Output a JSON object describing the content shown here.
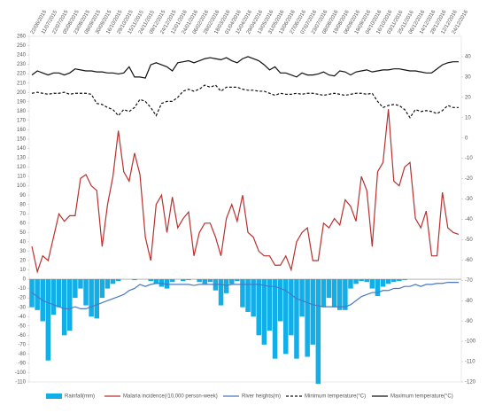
{
  "chart_data": {
    "type": "combo",
    "categories": [
      "22/06/2015",
      null,
      "11/07/2015",
      null,
      "22/07/2015",
      null,
      "05/08/2015",
      null,
      "23/08/2015",
      null,
      "08/09/2015",
      null,
      "30/09/2015",
      null,
      "16/10/2015",
      null,
      "29/10/2015",
      null,
      "15/11/2015",
      null,
      "24/11/2015",
      null,
      "09/12/2015",
      null,
      "24/12/2015",
      null,
      "12/01/2016",
      null,
      "24/01/2016",
      null,
      "06/02/2016",
      null,
      "28/02/2016",
      null,
      "18/03/2016",
      null,
      "01/04/2016",
      null,
      "15/04/2016",
      null,
      "29/04/2016",
      null,
      "13/05/2016",
      null,
      "31/05/2016",
      null,
      "13/06/2016",
      null,
      "27/06/2016",
      null,
      "07/07/2016",
      null,
      "23/07/2016",
      null,
      "08/08/2016",
      null,
      "19/08/2016",
      null,
      "06/09/2016",
      null,
      "19/09/2016",
      null,
      "04/10/2016",
      null,
      "16/10/2016",
      null,
      "03/11/2016",
      null,
      "25/11/2016",
      null,
      "06/12/2016",
      null,
      "14/12/2016",
      null,
      "28/12/2016",
      null,
      "12/12/2016",
      null,
      "24/12/2016",
      null
    ],
    "series": [
      {
        "name": "Rainfall(mm)",
        "type": "bar",
        "color": "#12aee8",
        "axis": "y",
        "values": [
          -30,
          -33,
          -45,
          -87,
          -38,
          -30,
          -60,
          -55,
          -20,
          -10,
          -28,
          -40,
          -42,
          -20,
          -10,
          -5,
          -2,
          0,
          0,
          -1,
          0,
          0,
          -2,
          -5,
          -8,
          -10,
          -3,
          0,
          -2,
          -1,
          0,
          -3,
          -5,
          -3,
          -12,
          -28,
          -15,
          -5,
          -2,
          -30,
          -35,
          -40,
          -60,
          -70,
          -55,
          -85,
          -45,
          -80,
          -60,
          -85,
          -40,
          -83,
          -70,
          -112,
          -30,
          -20,
          -30,
          -33,
          -33,
          -10,
          -5,
          -2,
          -3,
          -10,
          -18,
          -8,
          -5,
          -3,
          -2,
          -1,
          0,
          0,
          0,
          0,
          0,
          0,
          0,
          0,
          0,
          0
        ]
      },
      {
        "name": "Malaria incidence(/10,000 person-week)",
        "type": "line",
        "line_style": "solid",
        "color": "#b8312f",
        "axis": "y",
        "values": [
          35,
          8,
          25,
          20,
          45,
          70,
          62,
          68,
          68,
          108,
          112,
          100,
          95,
          35,
          80,
          110,
          159,
          115,
          105,
          135,
          112,
          45,
          20,
          80,
          90,
          50,
          88,
          55,
          65,
          72,
          25,
          50,
          60,
          60,
          45,
          25,
          65,
          80,
          62,
          90,
          50,
          45,
          30,
          25,
          25,
          15,
          15,
          25,
          10,
          40,
          50,
          55,
          20,
          20,
          60,
          55,
          65,
          58,
          85,
          78,
          62,
          110,
          95,
          35,
          115,
          125,
          182,
          105,
          100,
          120,
          125,
          65,
          55,
          73,
          25,
          25,
          93,
          55,
          50,
          48
        ]
      },
      {
        "name": "River heights(m)",
        "type": "line",
        "line_style": "solid",
        "color": "#4a78c2",
        "axis": "y2",
        "values": [
          -76,
          -78,
          -80,
          -81,
          -82,
          -83,
          -84,
          -84,
          -83,
          -84,
          -84,
          -83,
          -82,
          -81,
          -80,
          -79,
          -78,
          -77,
          -75,
          -74,
          -72,
          -73,
          -72,
          -71.5,
          -71.5,
          -72,
          -72,
          -72,
          -72,
          -72,
          -72.5,
          -72,
          -72,
          -72,
          -72,
          -72,
          -72.5,
          -72,
          -72,
          -72,
          -72,
          -72,
          -72,
          -72.5,
          -73,
          -73,
          -74,
          -75,
          -77,
          -79,
          -80,
          -81,
          -82,
          -82.5,
          -83,
          -83,
          -83,
          -83,
          -83,
          -82,
          -80,
          -78,
          -77,
          -76,
          -76,
          -75,
          -75,
          -74,
          -74,
          -73,
          -73,
          -72,
          -73,
          -72,
          -72,
          -71.5,
          -71.5,
          -71,
          -71,
          -71
        ]
      },
      {
        "name": "Minimum temperature(°C)",
        "type": "line",
        "line_style": "dashed",
        "color": "#111111",
        "axis": "y2",
        "values": [
          22,
          22.5,
          22,
          21.5,
          22,
          22,
          22.5,
          21.5,
          22,
          22,
          22,
          21.5,
          17,
          16.5,
          15,
          14,
          11,
          14,
          13,
          15,
          19,
          18,
          15,
          11,
          17,
          18,
          18,
          20,
          23,
          24,
          23,
          24,
          26,
          25,
          26,
          23,
          25,
          25,
          25,
          24,
          23.5,
          23.5,
          23,
          23,
          22,
          21,
          22,
          21.5,
          21.5,
          22,
          21.5,
          22,
          22,
          21.5,
          21,
          21.5,
          22,
          21.5,
          21,
          21.5,
          22,
          22,
          21.5,
          22,
          18,
          15,
          16,
          16.5,
          16,
          14,
          10,
          14,
          13,
          13.5,
          13,
          12,
          13.5,
          16,
          15,
          15
        ]
      },
      {
        "name": "Maximum temperature(°C)",
        "type": "line",
        "line_style": "solid",
        "color": "#111111",
        "axis": "y2",
        "values": [
          31,
          33,
          32,
          31,
          32,
          32,
          31,
          32,
          34,
          33.5,
          33,
          33,
          32.5,
          32.5,
          32,
          32,
          31.5,
          32,
          35,
          30,
          30,
          29.5,
          36,
          37,
          36,
          35,
          33,
          37,
          37.5,
          38,
          37,
          38,
          39,
          39.5,
          39,
          38.5,
          39.5,
          38,
          37,
          39,
          40,
          39,
          38,
          36,
          33.5,
          35,
          32,
          32,
          31,
          30,
          32,
          31,
          31,
          31.5,
          32.5,
          31,
          30.5,
          33,
          32.5,
          31,
          32.5,
          33,
          33.5,
          32.5,
          33,
          33.5,
          33.5,
          34,
          34,
          33.5,
          33,
          33,
          32.5,
          32,
          32,
          34,
          36,
          37,
          37.5,
          37.5
        ]
      }
    ],
    "ylim": [
      -110,
      260
    ],
    "yticks": [
      260,
      250,
      240,
      230,
      220,
      210,
      200,
      190,
      180,
      170,
      160,
      150,
      140,
      130,
      120,
      110,
      100,
      90,
      80,
      70,
      60,
      50,
      40,
      30,
      20,
      10,
      0,
      -10,
      -20,
      -30,
      -40,
      -50,
      -60,
      -70,
      -80,
      -90,
      -100,
      -110
    ],
    "y2lim": [
      -120,
      50
    ],
    "y2ticks": [
      40,
      30,
      20,
      10,
      0,
      -10,
      -20,
      -30,
      -40,
      -50,
      -60,
      -70,
      -80,
      -90,
      -100,
      -110,
      -120
    ],
    "grid": false,
    "legend": "bottom"
  }
}
